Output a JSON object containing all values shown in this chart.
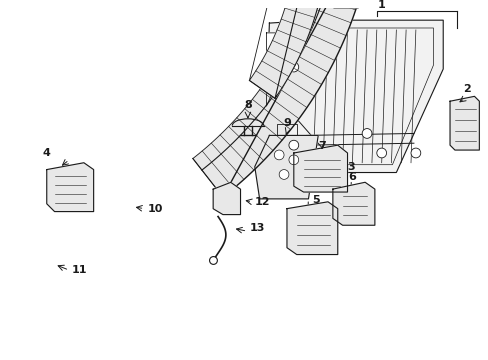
{
  "bg_color": "#ffffff",
  "line_color": "#1a1a1a",
  "figsize": [
    4.89,
    3.6
  ],
  "dpi": 100,
  "panel_fill": "#f2f2f2",
  "part_fill": "#e8e8e8"
}
